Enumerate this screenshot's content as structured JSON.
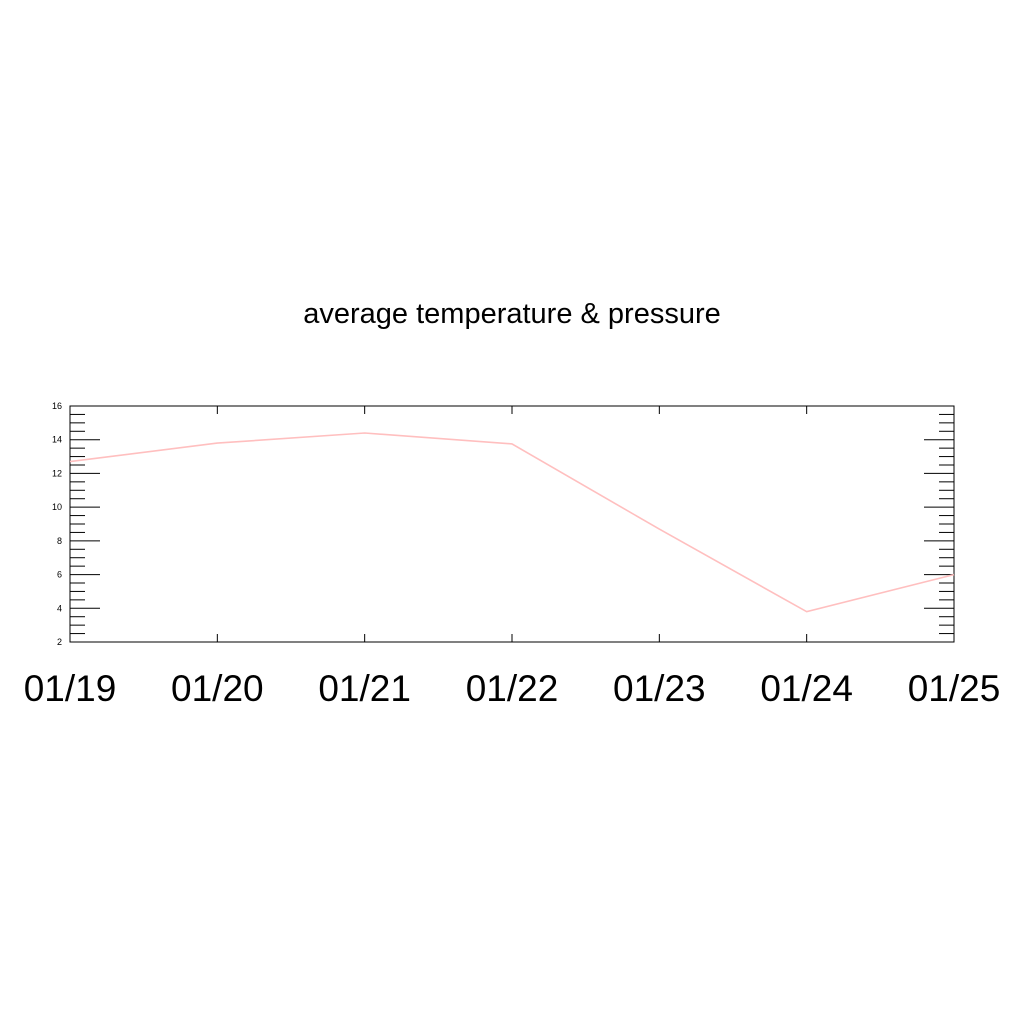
{
  "chart_data": {
    "type": "line",
    "title": "average temperature & pressure",
    "xlabel": "",
    "ylabel": "",
    "x": [
      "01/19",
      "01/20",
      "01/21",
      "01/22",
      "01/23",
      "01/24",
      "01/25"
    ],
    "series": [
      {
        "values": [
          12.7,
          13.8,
          14.4,
          13.75,
          8.7,
          3.8,
          6.0
        ],
        "color": "#ffbfbf"
      }
    ],
    "ylim": [
      2,
      16
    ],
    "yticks": [
      2,
      4,
      6,
      8,
      10,
      12,
      14,
      16
    ],
    "grid": false,
    "legend": "none"
  }
}
